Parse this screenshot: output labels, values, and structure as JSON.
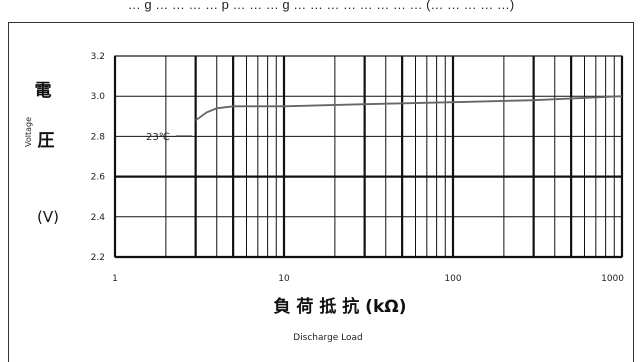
{
  "caption": "… g … … … … p … … … g … … … … … … … … (… … … … …)",
  "chart_data": {
    "type": "line",
    "x_scale": "log",
    "xlim": [
      1,
      1000
    ],
    "ylim": [
      2.2,
      3.2
    ],
    "x_ticks": [
      "1",
      "10",
      "100",
      "1000"
    ],
    "y_ticks": [
      "3.2",
      "3.0",
      "2.8",
      "2.6",
      "2.4",
      "2.2"
    ],
    "grid": true,
    "ylabel": {
      "cjk": [
        "電",
        "圧"
      ],
      "unit": "(V)",
      "en": "Voltage"
    },
    "xlabel": {
      "cjk": "負 荷 抵 抗 (kΩ)",
      "en": "Discharge Load"
    },
    "series": [
      {
        "label": "23℃",
        "x": [
          3,
          3.5,
          4,
          5,
          10,
          30,
          100,
          300,
          1000
        ],
        "y": [
          2.88,
          2.92,
          2.94,
          2.95,
          2.95,
          2.96,
          2.97,
          2.98,
          3.0
        ]
      }
    ]
  }
}
